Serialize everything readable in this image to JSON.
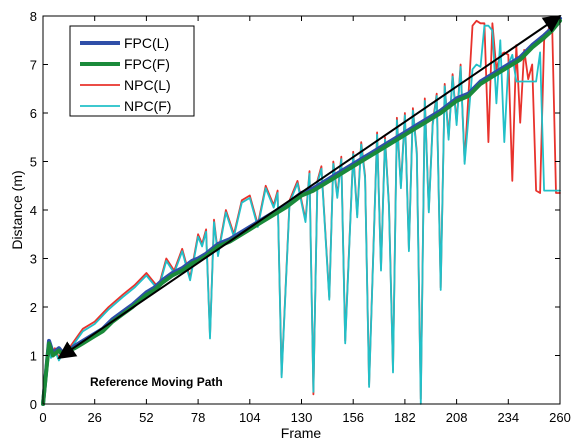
{
  "chart_data": {
    "type": "line",
    "title": "",
    "xlabel": "Frame",
    "ylabel": "Distance (m)",
    "xlim": [
      0,
      260
    ],
    "ylim": [
      0,
      8
    ],
    "xticks": [
      0,
      26,
      52,
      78,
      104,
      130,
      156,
      182,
      208,
      234,
      260
    ],
    "yticks": [
      0,
      1,
      2,
      3,
      4,
      5,
      6,
      7,
      8
    ],
    "grid": false,
    "legend_position": "top-left",
    "series": [
      {
        "name": "FPC(L)",
        "color": "#2f4fa8",
        "x": [
          0,
          3,
          5,
          8,
          10,
          13,
          16,
          20,
          26,
          30,
          35,
          40,
          45,
          52,
          56,
          60,
          65,
          70,
          75,
          78,
          82,
          88,
          94,
          100,
          104,
          110,
          116,
          122,
          130,
          136,
          142,
          148,
          156,
          162,
          168,
          174,
          182,
          188,
          194,
          200,
          208,
          214,
          220,
          226,
          234,
          240,
          246,
          252,
          256,
          258,
          260
        ],
        "y": [
          0,
          1.3,
          1.05,
          1.15,
          1.05,
          1.1,
          1.2,
          1.3,
          1.45,
          1.55,
          1.75,
          1.9,
          2.05,
          2.3,
          2.4,
          2.55,
          2.7,
          2.8,
          2.95,
          3.0,
          3.1,
          3.3,
          3.4,
          3.55,
          3.65,
          3.8,
          3.95,
          4.1,
          4.35,
          4.45,
          4.6,
          4.75,
          4.95,
          5.1,
          5.25,
          5.4,
          5.6,
          5.75,
          5.9,
          6.05,
          6.3,
          6.4,
          6.65,
          6.8,
          7.0,
          7.15,
          7.4,
          7.6,
          7.75,
          7.85,
          7.95
        ]
      },
      {
        "name": "FPC(F)",
        "color": "#1a8a3a",
        "x": [
          0,
          3,
          5,
          8,
          10,
          13,
          16,
          20,
          26,
          30,
          35,
          40,
          45,
          52,
          56,
          60,
          65,
          70,
          75,
          78,
          82,
          88,
          94,
          100,
          104,
          110,
          116,
          122,
          130,
          136,
          142,
          148,
          156,
          162,
          168,
          174,
          182,
          188,
          194,
          200,
          208,
          214,
          220,
          226,
          234,
          240,
          246,
          252,
          256,
          258,
          260
        ],
        "y": [
          0,
          1.25,
          1.0,
          1.1,
          1.0,
          1.1,
          1.15,
          1.25,
          1.4,
          1.5,
          1.7,
          1.85,
          2.0,
          2.25,
          2.35,
          2.5,
          2.65,
          2.75,
          2.9,
          2.95,
          3.05,
          3.25,
          3.35,
          3.5,
          3.6,
          3.75,
          3.9,
          4.05,
          4.3,
          4.4,
          4.55,
          4.7,
          4.9,
          5.05,
          5.2,
          5.35,
          5.55,
          5.7,
          5.85,
          6.0,
          6.25,
          6.35,
          6.6,
          6.75,
          6.95,
          7.1,
          7.35,
          7.55,
          7.7,
          7.8,
          7.9
        ]
      },
      {
        "name": "NPC(L)",
        "color": "#e8322c",
        "x": [
          0,
          3,
          4,
          6,
          8,
          10,
          14,
          20,
          26,
          33,
          40,
          46,
          52,
          58,
          62,
          66,
          70,
          74,
          78,
          80,
          82,
          84,
          86,
          88,
          92,
          96,
          100,
          104,
          108,
          112,
          116,
          118,
          120,
          124,
          128,
          132,
          134,
          136,
          138,
          140,
          144,
          146,
          148,
          150,
          152,
          156,
          158,
          160,
          162,
          164,
          168,
          170,
          172,
          174,
          176,
          178,
          180,
          182,
          184,
          186,
          188,
          190,
          192,
          194,
          196,
          198,
          200,
          202,
          204,
          206,
          208,
          210,
          212,
          216,
          218,
          220,
          222,
          224,
          226,
          228,
          230,
          232,
          234,
          236,
          238,
          240,
          242,
          244,
          246,
          248,
          250,
          252,
          254,
          256,
          258,
          260
        ],
        "y": [
          0,
          1.2,
          1.0,
          1.15,
          0.95,
          1.1,
          1.2,
          1.55,
          1.7,
          2.0,
          2.25,
          2.45,
          2.7,
          2.4,
          3.0,
          2.75,
          3.2,
          2.6,
          3.5,
          3.3,
          3.6,
          1.4,
          3.8,
          3.1,
          4.0,
          3.5,
          4.2,
          4.3,
          3.7,
          4.5,
          4.1,
          4.4,
          0.6,
          4.2,
          4.6,
          3.8,
          4.8,
          0.2,
          4.6,
          4.9,
          2.2,
          5.0,
          4.3,
          5.1,
          1.3,
          5.2,
          3.9,
          5.4,
          4.7,
          0.4,
          5.6,
          2.8,
          5.5,
          4.1,
          0.7,
          5.9,
          4.5,
          6.0,
          3.2,
          6.1,
          5.2,
          0.1,
          6.3,
          4.0,
          5.8,
          6.4,
          2.4,
          6.6,
          5.5,
          6.8,
          5.8,
          7.0,
          5.0,
          7.8,
          7.9,
          7.85,
          7.85,
          5.4,
          7.85,
          6.9,
          7.2,
          7.25,
          7.2,
          4.6,
          7.4,
          5.8,
          7.3,
          6.7,
          7.0,
          4.4,
          4.35,
          7.5,
          7.7,
          7.95,
          4.35,
          4.35
        ]
      },
      {
        "name": "NPC(F)",
        "color": "#22c0c8",
        "x": [
          0,
          3,
          4,
          6,
          8,
          10,
          14,
          20,
          26,
          33,
          40,
          46,
          52,
          58,
          62,
          66,
          70,
          74,
          78,
          80,
          82,
          84,
          86,
          88,
          92,
          96,
          100,
          104,
          108,
          112,
          116,
          118,
          120,
          124,
          128,
          132,
          134,
          136,
          138,
          140,
          144,
          146,
          148,
          150,
          152,
          156,
          158,
          160,
          162,
          164,
          168,
          170,
          172,
          174,
          176,
          178,
          180,
          182,
          184,
          186,
          188,
          190,
          192,
          194,
          196,
          198,
          200,
          202,
          204,
          206,
          208,
          210,
          212,
          216,
          218,
          220,
          222,
          224,
          226,
          228,
          230,
          232,
          234,
          236,
          238,
          240,
          242,
          244,
          246,
          248,
          250,
          252,
          254,
          256,
          258,
          260
        ],
        "y": [
          0,
          1.15,
          0.95,
          1.1,
          0.9,
          1.05,
          1.15,
          1.5,
          1.65,
          1.95,
          2.2,
          2.4,
          2.65,
          2.35,
          2.95,
          2.7,
          3.15,
          2.55,
          3.45,
          3.25,
          3.55,
          1.35,
          3.75,
          3.05,
          3.95,
          3.45,
          4.15,
          4.25,
          3.65,
          4.45,
          4.05,
          4.35,
          0.55,
          4.15,
          4.55,
          3.75,
          4.75,
          0.25,
          4.55,
          4.85,
          2.15,
          4.95,
          4.25,
          5.05,
          1.25,
          5.15,
          3.85,
          5.35,
          4.65,
          0.35,
          5.55,
          2.75,
          5.45,
          4.05,
          0.65,
          5.85,
          4.45,
          5.95,
          3.15,
          6.05,
          5.15,
          0.0,
          6.25,
          3.95,
          5.75,
          6.35,
          2.35,
          6.55,
          5.45,
          6.75,
          5.75,
          6.95,
          4.95,
          6.9,
          7.0,
          6.95,
          7.8,
          7.8,
          7.7,
          6.2,
          7.5,
          5.4,
          7.0,
          7.2,
          6.65,
          6.65,
          6.65,
          6.65,
          6.65,
          6.65,
          7.25,
          4.4,
          4.4,
          4.4,
          4.4,
          4.4
        ]
      }
    ],
    "annotations": [
      {
        "text": "Reference Moving Path",
        "type": "arrow",
        "from": [
          8,
          0.95
        ],
        "to": [
          260,
          8.0
        ],
        "color": "#000000"
      }
    ]
  }
}
